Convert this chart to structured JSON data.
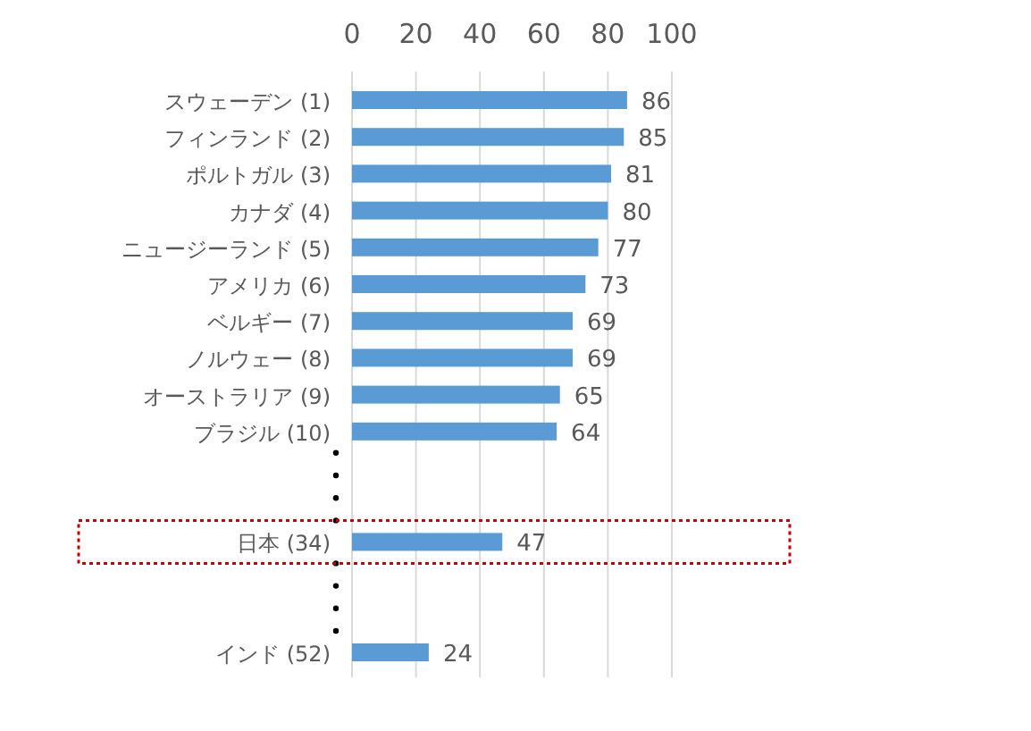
{
  "chart_data": {
    "type": "bar",
    "orientation": "horizontal",
    "categories": [
      "スウェーデン (1)",
      "フィンランド (2)",
      "ポルトガル (3)",
      "カナダ (4)",
      "ニュージーランド (5)",
      "アメリカ (6)",
      "ベルギー (7)",
      "ノルウェー (8)",
      "オーストラリア (9)",
      "ブラジル (10)",
      null,
      null,
      "日本 (34)",
      null,
      null,
      "インド (52)"
    ],
    "values": [
      86,
      85,
      81,
      80,
      77,
      73,
      69,
      69,
      65,
      64,
      null,
      null,
      47,
      null,
      null,
      24
    ],
    "color": "#5b9bd5",
    "xlim": [
      0,
      100
    ],
    "xticks": [
      0,
      20,
      40,
      60,
      80,
      100
    ],
    "grid": "x",
    "data_labels": true
  }
}
